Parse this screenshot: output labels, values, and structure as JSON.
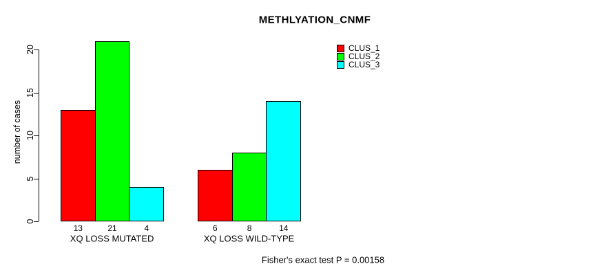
{
  "chart_data": {
    "type": "bar",
    "title": "METHLYATION_CNMF",
    "xlabel": "",
    "ylabel": "number of cases",
    "ylim": [
      0,
      20
    ],
    "yticks": [
      0,
      5,
      10,
      15,
      20
    ],
    "grid": false,
    "legend_position": "top-right-inside",
    "categories": [
      "XQ LOSS MUTATED",
      "XQ LOSS WILD-TYPE"
    ],
    "series": [
      {
        "name": "CLUS_1",
        "color": "#ff0000",
        "values": [
          13,
          6
        ]
      },
      {
        "name": "CLUS_2",
        "color": "#00ff00",
        "values": [
          21,
          8
        ]
      },
      {
        "name": "CLUS_3",
        "color": "#00ffff",
        "values": [
          4,
          14
        ]
      }
    ],
    "bar_value_labels": [
      [
        "13",
        "21",
        "4"
      ],
      [
        "6",
        "8",
        "14"
      ]
    ],
    "footnote": "Fisher's exact test P = 0.00158"
  }
}
